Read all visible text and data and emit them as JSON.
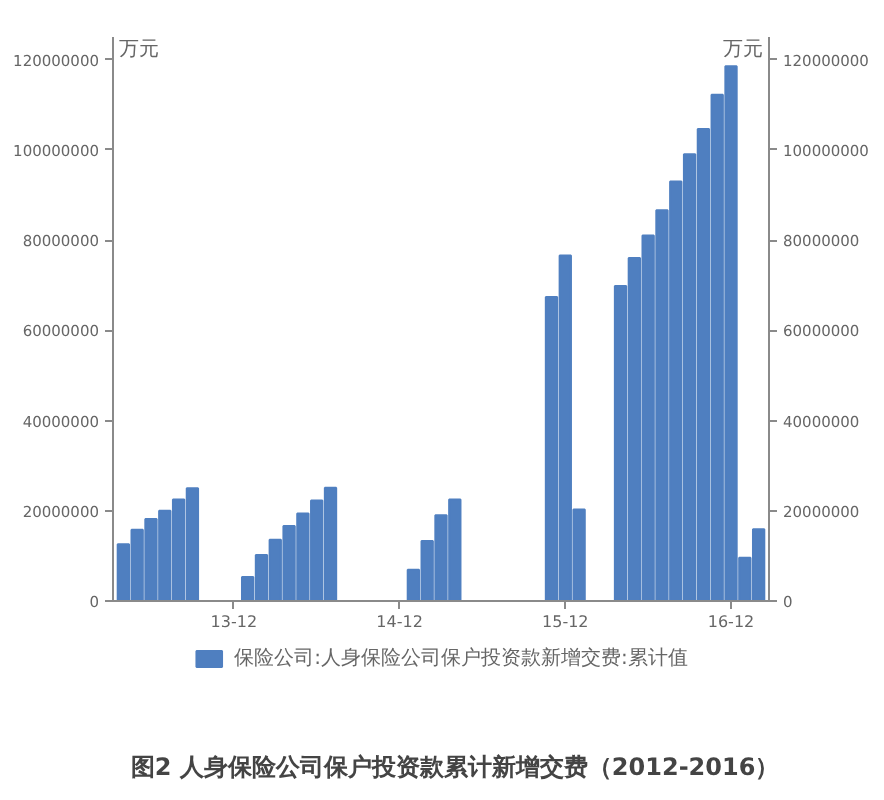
{
  "chart_data": {
    "type": "bar",
    "ylabel": "万元",
    "y2label": "万元",
    "categories": [
      null,
      null,
      null,
      null,
      null,
      null,
      null,
      null,
      "13-12",
      null,
      null,
      null,
      null,
      null,
      null,
      null,
      null,
      null,
      null,
      null,
      "14-12",
      null,
      null,
      null,
      null,
      null,
      null,
      null,
      null,
      null,
      null,
      null,
      "15-12",
      null,
      null,
      null,
      null,
      null,
      null,
      null,
      null,
      null,
      null,
      null,
      "16-12",
      null,
      null
    ],
    "series": [
      {
        "name": "保险公司:人身保险公司保户投资款新增交费:累计值",
        "color": "#4f7fc0",
        "values": [
          12600000,
          15800000,
          18200000,
          20000000,
          22500000,
          25000000,
          null,
          null,
          null,
          5300000,
          10200000,
          13600000,
          16600000,
          19400000,
          22300000,
          25100000,
          null,
          null,
          null,
          null,
          null,
          6900000,
          13300000,
          19000000,
          22500000,
          null,
          null,
          null,
          null,
          null,
          null,
          67400000,
          76600000,
          20300000,
          null,
          null,
          69800000,
          76000000,
          81000000,
          86600000,
          93000000,
          99000000,
          104600000,
          112200000,
          118500000,
          9600000,
          15900000
        ]
      }
    ],
    "ylim": [
      0,
      125000000
    ],
    "yticks": [
      0,
      20000000,
      40000000,
      60000000,
      80000000,
      100000000,
      120000000
    ],
    "y2lim": [
      0,
      125000000
    ],
    "y2ticks": [
      0,
      20000000,
      40000000,
      60000000,
      80000000,
      100000000,
      120000000
    ],
    "grid": false,
    "legend": "bottom",
    "annotations": [
      "图2 人身保险公司保户投资款累计新增交费（2012-2016）"
    ]
  }
}
